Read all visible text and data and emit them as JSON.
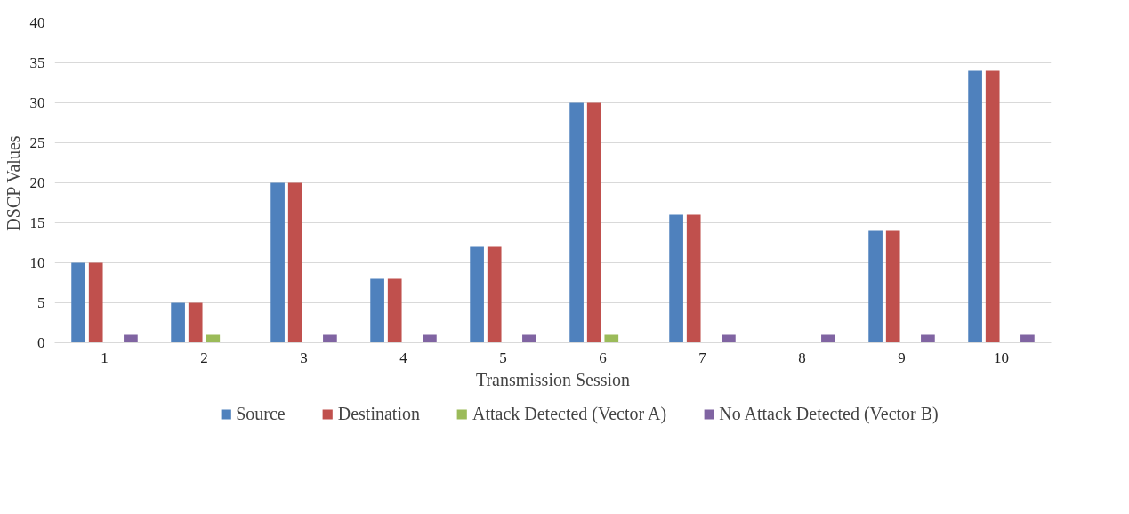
{
  "chart_data": {
    "type": "bar",
    "xlabel": "Transmission Session",
    "ylabel": "DSCP Values",
    "categories": [
      "1",
      "2",
      "3",
      "4",
      "5",
      "6",
      "7",
      "8",
      "9",
      "10"
    ],
    "series": [
      {
        "name": "Source",
        "color": "#4f81bd",
        "values": [
          10,
          5,
          20,
          8,
          12,
          30,
          16,
          0,
          14,
          34
        ]
      },
      {
        "name": "Destination",
        "color": "#c0504d",
        "values": [
          10,
          5,
          20,
          8,
          12,
          30,
          16,
          0,
          14,
          34
        ]
      },
      {
        "name": "Attack Detected (Vector A)",
        "color": "#9bbb59",
        "values": [
          0,
          1,
          0,
          0,
          0,
          1,
          0,
          0,
          0,
          0
        ]
      },
      {
        "name": "No Attack Detected (Vector B)",
        "color": "#8064a2",
        "values": [
          1,
          0,
          1,
          1,
          1,
          0,
          1,
          1,
          1,
          1
        ]
      }
    ],
    "ylim": [
      0,
      40
    ],
    "yticks": [
      0,
      5,
      10,
      15,
      20,
      25,
      30,
      35,
      40
    ],
    "grid": "y",
    "legend": "bottom"
  }
}
